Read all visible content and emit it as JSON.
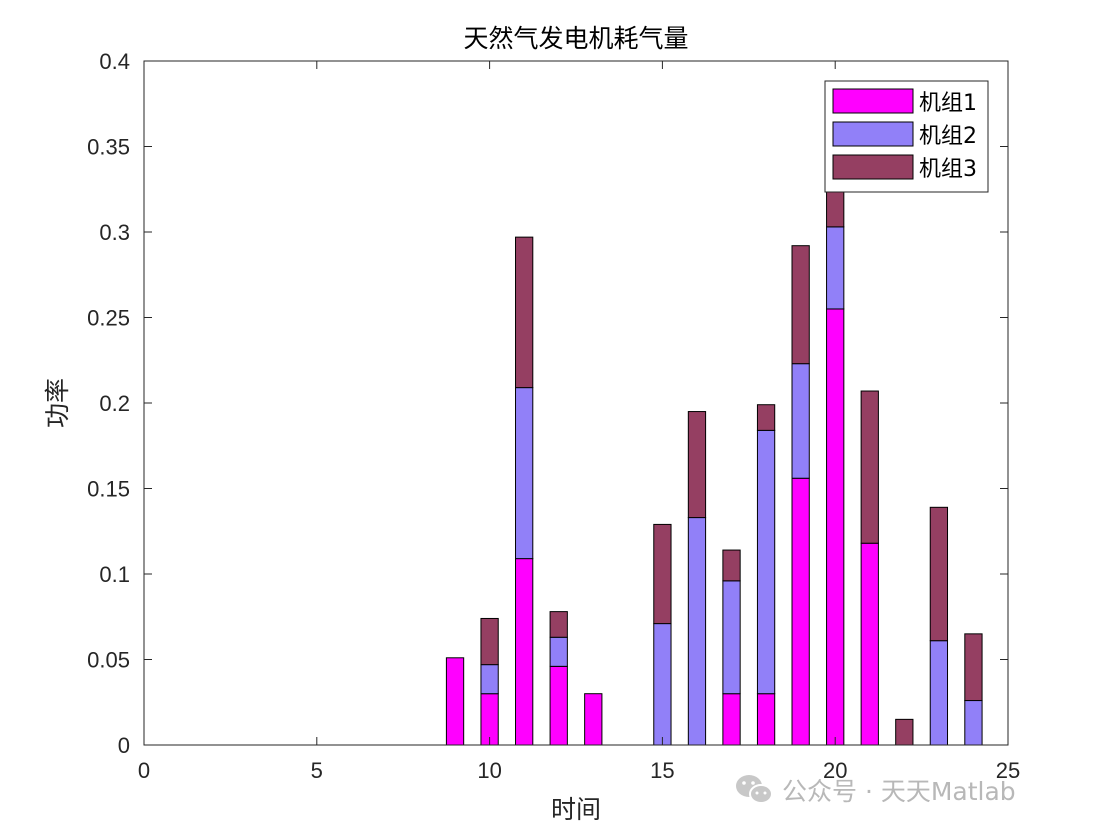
{
  "chart_data": {
    "type": "bar",
    "stacked": true,
    "title": "天然气发电机耗气量",
    "xlabel": "时间",
    "ylabel": "功率",
    "xlim": [
      0,
      25
    ],
    "ylim": [
      0,
      0.4
    ],
    "xticks": [
      0,
      5,
      10,
      15,
      20,
      25
    ],
    "xtick_labels": [
      "0",
      "5",
      "10",
      "15",
      "20",
      "25"
    ],
    "yticks": [
      0,
      0.05,
      0.1,
      0.15,
      0.2,
      0.25,
      0.3,
      0.35,
      0.4
    ],
    "ytick_labels": [
      "0",
      "0.05",
      "0.1",
      "0.15",
      "0.2",
      "0.25",
      "0.3",
      "0.35",
      "0.4"
    ],
    "grid": false,
    "legend_position": "top-right",
    "x": [
      1,
      2,
      3,
      4,
      5,
      6,
      7,
      8,
      9,
      10,
      11,
      12,
      13,
      14,
      15,
      16,
      17,
      18,
      19,
      20,
      21,
      22,
      23,
      24
    ],
    "series": [
      {
        "name": "机组1",
        "color": "#FF00FF",
        "values": [
          0,
          0,
          0,
          0,
          0,
          0,
          0,
          0,
          0.051,
          0.03,
          0.109,
          0.046,
          0.03,
          0,
          0,
          0,
          0.03,
          0.03,
          0.156,
          0.255,
          0.118,
          0,
          0,
          0
        ]
      },
      {
        "name": "机组2",
        "color": "#9180F8",
        "values": [
          0,
          0,
          0,
          0,
          0,
          0,
          0,
          0,
          0,
          0.017,
          0.1,
          0.017,
          0,
          0,
          0.071,
          0.133,
          0.066,
          0.154,
          0.067,
          0.048,
          0,
          0,
          0.061,
          0.026
        ]
      },
      {
        "name": "机组3",
        "color": "#953F62",
        "values": [
          0,
          0,
          0,
          0,
          0,
          0,
          0,
          0,
          0,
          0.027,
          0.088,
          0.015,
          0,
          0,
          0.058,
          0.062,
          0.018,
          0.015,
          0.069,
          0.045,
          0.089,
          0.015,
          0.078,
          0.039
        ]
      }
    ]
  },
  "watermark": {
    "text": "公众号 · 天天Matlab",
    "icon": "wechat-icon"
  }
}
